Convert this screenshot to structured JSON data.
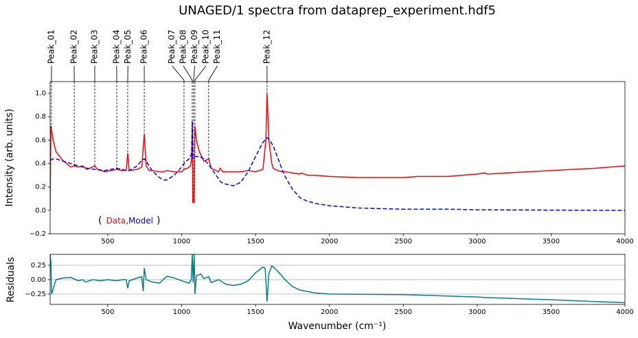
{
  "chart_data": [
    {
      "type": "line",
      "title": "UNAGED/1 spectra from dataprep_experiment.hdf5",
      "ylabel": "Intensity (arb. units)",
      "x": [
        110,
        115,
        130,
        150,
        200,
        250,
        273,
        300,
        330,
        360,
        412,
        430,
        480,
        520,
        560,
        600,
        625,
        635,
        645,
        700,
        730,
        747,
        760,
        780,
        800,
        850,
        880,
        900,
        950,
        1000,
        1016,
        1040,
        1060,
        1068,
        1072,
        1075,
        1080,
        1085,
        1090,
        1100,
        1120,
        1150,
        1183,
        1200,
        1250,
        1260,
        1280,
        1350,
        1400,
        1450,
        1500,
        1550,
        1570,
        1578,
        1590,
        1610,
        1620,
        1650,
        1680,
        1700,
        1750,
        1800,
        1810,
        1850,
        1900,
        2000,
        2200,
        2500,
        2600,
        2800,
        3000,
        3050,
        3070,
        3200,
        3500,
        3800,
        4000
      ],
      "series": [
        {
          "name": "Data",
          "color": "#ff0000",
          "linestyle": "solid",
          "values": [
            0.0,
            0.72,
            0.6,
            0.5,
            0.42,
            0.37,
            0.38,
            0.37,
            0.38,
            0.35,
            0.38,
            0.35,
            0.33,
            0.34,
            0.35,
            0.34,
            0.34,
            0.49,
            0.34,
            0.35,
            0.37,
            0.65,
            0.38,
            0.34,
            0.34,
            0.33,
            0.33,
            0.34,
            0.33,
            0.33,
            0.35,
            0.36,
            0.38,
            0.45,
            0.76,
            0.07,
            0.08,
            0.07,
            0.72,
            0.6,
            0.5,
            0.42,
            0.44,
            0.36,
            0.33,
            0.36,
            0.33,
            0.33,
            0.33,
            0.34,
            0.33,
            0.35,
            0.6,
            1.0,
            0.6,
            0.4,
            0.36,
            0.34,
            0.33,
            0.33,
            0.32,
            0.31,
            0.32,
            0.3,
            0.3,
            0.29,
            0.28,
            0.28,
            0.29,
            0.29,
            0.31,
            0.32,
            0.31,
            0.32,
            0.34,
            0.36,
            0.38
          ]
        },
        {
          "name": "Model",
          "color": "#0000ff",
          "linestyle": "dashed",
          "values": [
            0.43,
            0.43,
            0.44,
            0.44,
            0.42,
            0.4,
            0.39,
            0.38,
            0.37,
            0.36,
            0.35,
            0.35,
            0.34,
            0.35,
            0.36,
            0.35,
            0.34,
            0.34,
            0.34,
            0.38,
            0.43,
            0.44,
            0.42,
            0.38,
            0.34,
            0.28,
            0.26,
            0.26,
            0.3,
            0.37,
            0.4,
            0.43,
            0.45,
            0.5,
            0.76,
            0.45,
            0.46,
            0.46,
            0.46,
            0.46,
            0.46,
            0.44,
            0.39,
            0.36,
            0.27,
            0.25,
            0.23,
            0.21,
            0.24,
            0.33,
            0.46,
            0.58,
            0.61,
            0.62,
            0.61,
            0.57,
            0.55,
            0.45,
            0.35,
            0.29,
            0.18,
            0.11,
            0.1,
            0.08,
            0.06,
            0.04,
            0.02,
            0.01,
            0.01,
            0.01,
            0.005,
            0.005,
            0.005,
            0.004,
            0.002,
            0.001,
            0.0
          ]
        }
      ],
      "legend_loc": "lower left",
      "legend_brackets": [
        "(",
        ")"
      ],
      "legend_separator": ",",
      "peaks": {
        "labels": [
          "Peak_01",
          "Peak_02",
          "Peak_03",
          "Peak_04",
          "Peak_05",
          "Peak_06",
          "Peak_07",
          "Peak_08",
          "Peak_09",
          "Peak_10",
          "Peak_11",
          "Peak_12"
        ],
        "positions": [
          119,
          273,
          412,
          561,
          635,
          747,
          1016,
          1072,
          1081,
          1090,
          1183,
          1578
        ]
      },
      "xlim": [
        110,
        4000
      ],
      "xticks": [
        500,
        1000,
        1500,
        2000,
        2500,
        3000,
        3500,
        4000
      ],
      "ylim": [
        -0.2,
        1.1
      ],
      "yticks": [
        {
          "value": -0.2,
          "label": "−0.2"
        },
        {
          "value": 0,
          "label": "0.0"
        },
        0.2,
        0.4,
        0.6,
        0.8,
        {
          "value": 1,
          "label": "1.0"
        }
      ],
      "grid": false
    },
    {
      "type": "line",
      "ylabel": "Residuals",
      "xlabel": "Wavenumber (cm⁻¹)",
      "x": [
        110,
        115,
        120,
        150,
        200,
        250,
        300,
        330,
        350,
        400,
        450,
        500,
        560,
        600,
        625,
        635,
        645,
        700,
        730,
        740,
        747,
        760,
        800,
        850,
        900,
        950,
        1000,
        1050,
        1065,
        1072,
        1078,
        1085,
        1090,
        1100,
        1130,
        1150,
        1183,
        1200,
        1250,
        1300,
        1350,
        1400,
        1450,
        1500,
        1550,
        1565,
        1578,
        1590,
        1610,
        1650,
        1700,
        1750,
        1800,
        1900,
        2000,
        2500,
        3000,
        3050,
        3500,
        4000
      ],
      "values": [
        0.44,
        0.3,
        -0.25,
        0.0,
        0.03,
        0.04,
        -0.02,
        0.0,
        -0.04,
        0.0,
        -0.02,
        0.0,
        -0.02,
        0.0,
        0.0,
        -0.15,
        -0.02,
        0.03,
        0.05,
        -0.2,
        0.2,
        0.0,
        -0.04,
        -0.06,
        0.06,
        0.03,
        -0.02,
        -0.06,
        0.0,
        0.44,
        -0.05,
        0.44,
        -0.25,
        0.07,
        0.1,
        0.02,
        0.05,
        -0.05,
        0.0,
        -0.08,
        -0.1,
        -0.08,
        -0.02,
        0.12,
        0.22,
        0.2,
        -0.38,
        0.1,
        0.24,
        0.15,
        0.0,
        -0.12,
        -0.18,
        -0.23,
        -0.25,
        -0.26,
        -0.3,
        -0.31,
        -0.35,
        -0.4
      ],
      "color": "#008080",
      "xlim": [
        110,
        4000
      ],
      "xticks": [
        500,
        1000,
        1500,
        2000,
        2500,
        3000,
        3500,
        4000
      ],
      "ylim": [
        -0.43,
        0.44
      ],
      "yticks": [
        {
          "value": -0.25,
          "label": "−0.25"
        },
        {
          "value": 0,
          "label": "0.00"
        },
        0.25
      ],
      "grid": true
    }
  ]
}
